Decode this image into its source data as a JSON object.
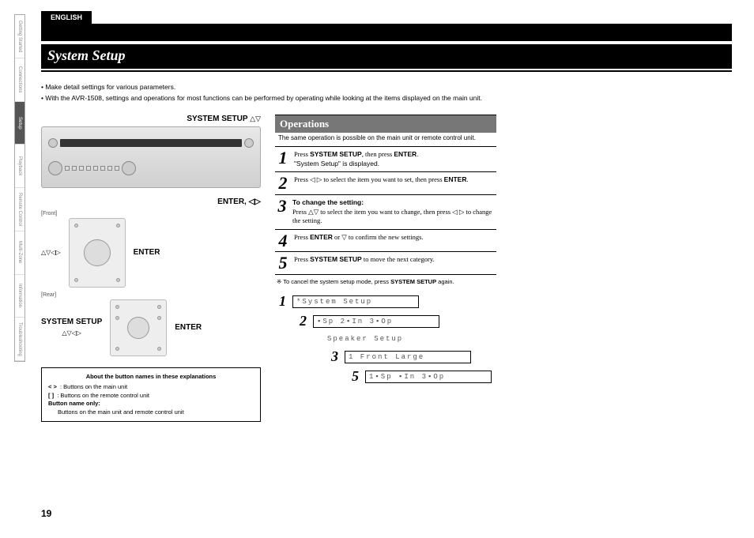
{
  "language_tab": "ENGLISH",
  "sidebar_tabs": [
    "Getting Started",
    "Connections",
    "Setup",
    "Playback",
    "Remote Control",
    "Multi-Zone",
    "Information",
    "Troubleshooting"
  ],
  "sidebar_active_index": 2,
  "title": "System Setup",
  "intro_bullets": [
    "• Make detail settings for various parameters.",
    "• With the AVR-1508, settings and operations for most functions can be performed by operating while looking at the items displayed on the main unit."
  ],
  "labels": {
    "system_setup": "SYSTEM SETUP",
    "enter": "ENTER",
    "enter_arrows": "ENTER, ◁▷",
    "front": "[Front]",
    "rear": "[Rear]",
    "arrows_ud": "△▽",
    "arrows_all": "△▽◁▷"
  },
  "explain_box": {
    "header": "About the button names in these explanations",
    "line1_sym": "<   >",
    "line1_txt": ": Buttons on the main unit",
    "line2_sym": "[   ]",
    "line2_txt": ": Buttons on the remote control unit",
    "sub": "Button name only:",
    "sub_txt": "Buttons on the main unit and remote control unit"
  },
  "operations": {
    "header": "Operations",
    "sub": "The same operation is possible on the main unit or remote control unit.",
    "steps": [
      {
        "n": "1",
        "html": "Press <b>SYSTEM SETUP</b>, then press <b>ENTER</b>.<br><span class='quote'>\"System Setup\" is displayed.</span>"
      },
      {
        "n": "2",
        "html": "Press ◁ ▷ to select the item you want to set, then press <b>ENTER</b>."
      },
      {
        "n": "3",
        "html": "<b>To change the setting:</b><br>Press △▽ to select the item you want to change, then press ◁ ▷ to change the setting."
      },
      {
        "n": "4",
        "html": "Press <b>ENTER</b> or ▽ to confirm the new settings."
      },
      {
        "n": "5",
        "html": "Press <b>SYSTEM SETUP</b> to move the next category."
      }
    ],
    "footnote": "※ To cancel the system setup mode, press <b>SYSTEM SETUP</b> again."
  },
  "display_sequence": [
    {
      "n": "1",
      "text": "*System Setup",
      "indent": 0
    },
    {
      "n": "2",
      "text": "▪Sp 2▪In 3▪Op",
      "indent": 26
    },
    {
      "n": "",
      "text": "Speaker Setup",
      "indent": 40,
      "noborder": true
    },
    {
      "n": "3",
      "text": "1 Front  Large",
      "indent": 66
    },
    {
      "n": "5",
      "text": "1▪Sp ▪In 3▪Op",
      "indent": 92
    }
  ],
  "page_number": "19",
  "colors": {
    "black": "#000000",
    "sidebar_gray": "#888888",
    "sidebar_active_bg": "#555555",
    "ops_header_bg": "#777777",
    "device_border": "#aaaaaa",
    "lcd_text": "#555555"
  }
}
